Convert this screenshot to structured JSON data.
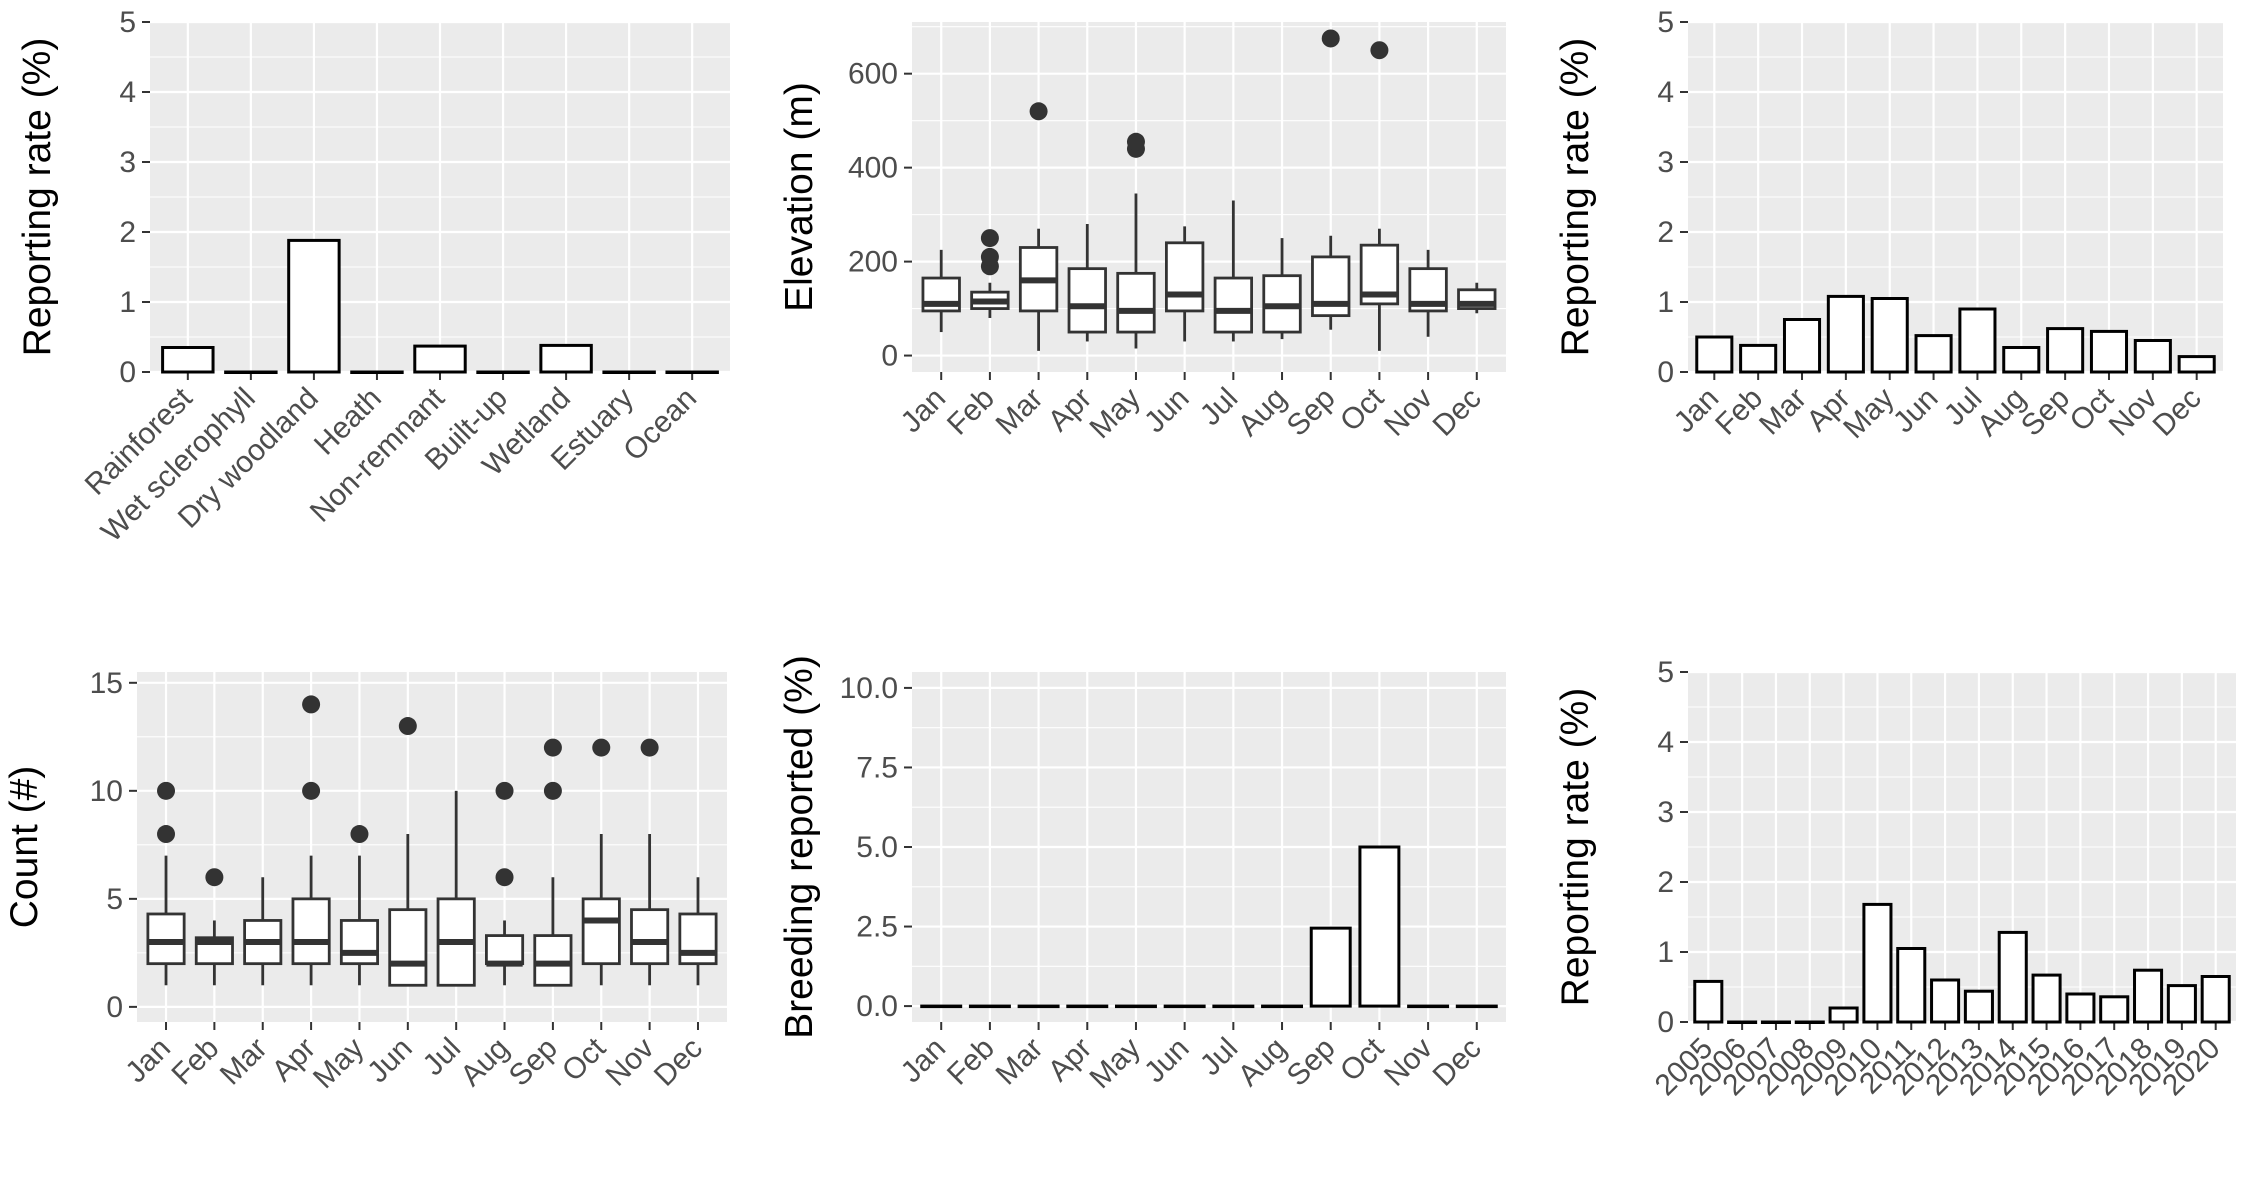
{
  "chart_data": [
    {
      "id": "habitat",
      "type": "bar",
      "ylabel": "Reporting rate (%)",
      "xlabel": "",
      "ylim": [
        0,
        5
      ],
      "yticks": [
        0,
        1,
        2,
        3,
        4,
        5
      ],
      "categories": [
        "Rainforest",
        "Wet sclerophyll",
        "Dry woodland",
        "Heath",
        "Non-remnant",
        "Built-up",
        "Wetland",
        "Estuary",
        "Ocean"
      ],
      "values": [
        0.35,
        0.0,
        1.88,
        0.0,
        0.37,
        0.0,
        0.38,
        0.0,
        0.0
      ]
    },
    {
      "id": "elevation",
      "type": "boxplot",
      "ylabel": "Elevation (m)",
      "xlabel": "",
      "ylim": [
        -35,
        710
      ],
      "yticks": [
        0,
        200,
        400,
        600
      ],
      "categories": [
        "Jan",
        "Feb",
        "Mar",
        "Apr",
        "May",
        "Jun",
        "Jul",
        "Aug",
        "Sep",
        "Oct",
        "Nov",
        "Dec"
      ],
      "boxes": [
        {
          "min": 50,
          "q1": 95,
          "median": 110,
          "q3": 165,
          "max": 225,
          "outliers": []
        },
        {
          "min": 80,
          "q1": 100,
          "median": 115,
          "q3": 135,
          "max": 155,
          "outliers": [
            190,
            210,
            250
          ]
        },
        {
          "min": 10,
          "q1": 95,
          "median": 160,
          "q3": 230,
          "max": 270,
          "outliers": [
            520
          ]
        },
        {
          "min": 30,
          "q1": 50,
          "median": 105,
          "q3": 185,
          "max": 280,
          "outliers": []
        },
        {
          "min": 15,
          "q1": 50,
          "median": 95,
          "q3": 175,
          "max": 345,
          "outliers": [
            440,
            455
          ]
        },
        {
          "min": 30,
          "q1": 95,
          "median": 130,
          "q3": 240,
          "max": 275,
          "outliers": []
        },
        {
          "min": 30,
          "q1": 50,
          "median": 95,
          "q3": 165,
          "max": 330,
          "outliers": []
        },
        {
          "min": 35,
          "q1": 50,
          "median": 105,
          "q3": 170,
          "max": 250,
          "outliers": []
        },
        {
          "min": 55,
          "q1": 85,
          "median": 110,
          "q3": 210,
          "max": 255,
          "outliers": [
            675
          ]
        },
        {
          "min": 10,
          "q1": 110,
          "median": 130,
          "q3": 235,
          "max": 270,
          "outliers": [
            650
          ]
        },
        {
          "min": 40,
          "q1": 95,
          "median": 110,
          "q3": 185,
          "max": 225,
          "outliers": []
        },
        {
          "min": 90,
          "q1": 100,
          "median": 110,
          "q3": 140,
          "max": 155,
          "outliers": []
        }
      ]
    },
    {
      "id": "month-rate",
      "type": "bar",
      "ylabel": "Reporting rate (%)",
      "xlabel": "",
      "ylim": [
        0,
        5
      ],
      "yticks": [
        0,
        1,
        2,
        3,
        4,
        5
      ],
      "categories": [
        "Jan",
        "Feb",
        "Mar",
        "Apr",
        "May",
        "Jun",
        "Jul",
        "Aug",
        "Sep",
        "Oct",
        "Nov",
        "Dec"
      ],
      "values": [
        0.5,
        0.38,
        0.75,
        1.08,
        1.05,
        0.52,
        0.9,
        0.35,
        0.62,
        0.58,
        0.45,
        0.22
      ]
    },
    {
      "id": "count",
      "type": "boxplot",
      "ylabel": "Count (#)",
      "xlabel": "",
      "ylim": [
        -0.7,
        15.5
      ],
      "yticks": [
        0,
        5,
        10,
        15
      ],
      "categories": [
        "Jan",
        "Feb",
        "Mar",
        "Apr",
        "May",
        "Jun",
        "Jul",
        "Aug",
        "Sep",
        "Oct",
        "Nov",
        "Dec"
      ],
      "boxes": [
        {
          "min": 1,
          "q1": 2,
          "median": 3,
          "q3": 4.3,
          "max": 7,
          "outliers": [
            8,
            10
          ]
        },
        {
          "min": 1,
          "q1": 2,
          "median": 3,
          "q3": 3.2,
          "max": 4,
          "outliers": [
            6
          ]
        },
        {
          "min": 1,
          "q1": 2,
          "median": 3,
          "q3": 4,
          "max": 6,
          "outliers": []
        },
        {
          "min": 1,
          "q1": 2,
          "median": 3,
          "q3": 5,
          "max": 7,
          "outliers": [
            10,
            14
          ]
        },
        {
          "min": 1,
          "q1": 2,
          "median": 2.5,
          "q3": 4,
          "max": 7,
          "outliers": [
            8
          ]
        },
        {
          "min": 1,
          "q1": 1,
          "median": 2,
          "q3": 4.5,
          "max": 8,
          "outliers": [
            13
          ]
        },
        {
          "min": 1,
          "q1": 1,
          "median": 3,
          "q3": 5,
          "max": 10,
          "outliers": []
        },
        {
          "min": 1,
          "q1": 2,
          "median": 2,
          "q3": 3.3,
          "max": 4,
          "outliers": [
            6,
            10
          ]
        },
        {
          "min": 1,
          "q1": 1,
          "median": 2,
          "q3": 3.3,
          "max": 6,
          "outliers": [
            10,
            12
          ]
        },
        {
          "min": 1,
          "q1": 2,
          "median": 4,
          "q3": 5,
          "max": 8,
          "outliers": [
            12
          ]
        },
        {
          "min": 1,
          "q1": 2,
          "median": 3,
          "q3": 4.5,
          "max": 8,
          "outliers": [
            12
          ]
        },
        {
          "min": 1,
          "q1": 2,
          "median": 2.5,
          "q3": 4.3,
          "max": 6,
          "outliers": []
        }
      ]
    },
    {
      "id": "breeding",
      "type": "bar",
      "ylabel": "Breeding reported (%)",
      "xlabel": "",
      "ylim": [
        -0.5,
        10.5
      ],
      "yticks": [
        0.0,
        2.5,
        5.0,
        7.5,
        10.0
      ],
      "ytick_labels": [
        "0.0",
        "2.5",
        "5.0",
        "7.5",
        "10.0"
      ],
      "categories": [
        "Jan",
        "Feb",
        "Mar",
        "Apr",
        "May",
        "Jun",
        "Jul",
        "Aug",
        "Sep",
        "Oct",
        "Nov",
        "Dec"
      ],
      "values": [
        0,
        0,
        0,
        0,
        0,
        0,
        0,
        0,
        2.45,
        5.0,
        0,
        0
      ]
    },
    {
      "id": "year-rate",
      "type": "bar",
      "ylabel": "Reporting rate (%)",
      "xlabel": "",
      "ylim": [
        0,
        5
      ],
      "yticks": [
        0,
        1,
        2,
        3,
        4,
        5
      ],
      "categories": [
        "2005",
        "2006",
        "2007",
        "2008",
        "2009",
        "2010",
        "2011",
        "2012",
        "2013",
        "2014",
        "2015",
        "2016",
        "2017",
        "2018",
        "2019",
        "2020"
      ],
      "values": [
        0.58,
        0.0,
        0.0,
        0.0,
        0.2,
        1.68,
        1.05,
        0.6,
        0.44,
        1.28,
        0.67,
        0.4,
        0.36,
        0.74,
        0.52,
        0.65
      ]
    }
  ]
}
